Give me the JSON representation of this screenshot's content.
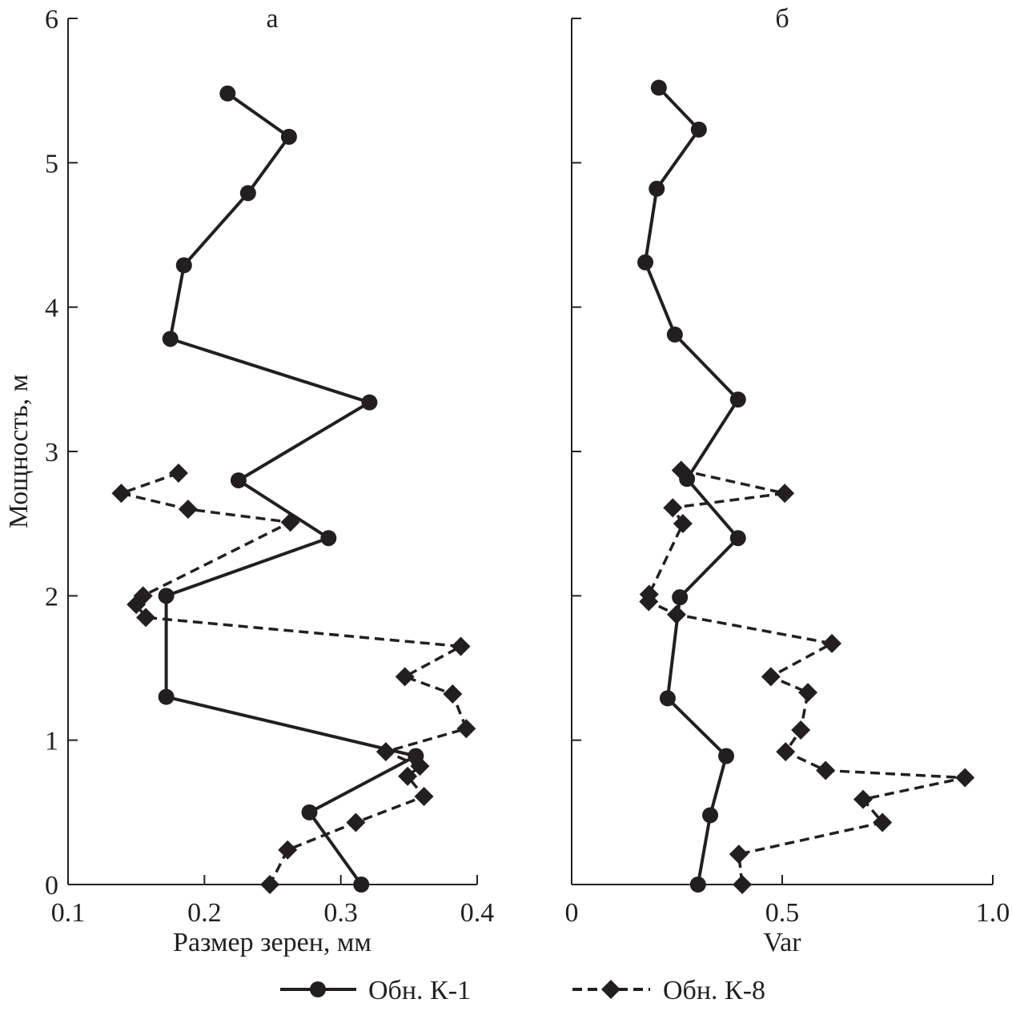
{
  "chart_data": [
    {
      "type": "line",
      "panel_label": "а",
      "xlabel": "Размер зерен, мм",
      "ylabel": "Мощность, м",
      "xlim": [
        0.1,
        0.4
      ],
      "ylim": [
        0,
        6
      ],
      "xticks": [
        "0.1",
        "0.2",
        "0.3",
        "0.4"
      ],
      "xtick_values": [
        0.1,
        0.2,
        0.3,
        0.4
      ],
      "yticks": [
        "0",
        "1",
        "2",
        "3",
        "4",
        "5",
        "6"
      ],
      "ytick_values": [
        0,
        1,
        2,
        3,
        4,
        5,
        6
      ],
      "grid": false,
      "series": [
        {
          "name": "Обн. К-1",
          "style": "solid",
          "marker": "circle",
          "points": [
            [
              0.217,
              5.48
            ],
            [
              0.262,
              5.18
            ],
            [
              0.232,
              4.79
            ],
            [
              0.185,
              4.29
            ],
            [
              0.175,
              3.78
            ],
            [
              0.321,
              3.34
            ],
            [
              0.225,
              2.8
            ],
            [
              0.291,
              2.4
            ],
            [
              0.172,
              2.0
            ],
            [
              0.172,
              1.3
            ],
            [
              0.355,
              0.89
            ],
            [
              0.277,
              0.5
            ],
            [
              0.315,
              0.0
            ]
          ]
        },
        {
          "name": "Обн. К-8",
          "style": "dashed",
          "marker": "diamond",
          "points": [
            [
              0.181,
              2.85
            ],
            [
              0.139,
              2.71
            ],
            [
              0.188,
              2.6
            ],
            [
              0.263,
              2.51
            ],
            [
              0.155,
              2.0
            ],
            [
              0.15,
              1.94
            ],
            [
              0.157,
              1.85
            ],
            [
              0.388,
              1.65
            ],
            [
              0.347,
              1.44
            ],
            [
              0.382,
              1.32
            ],
            [
              0.392,
              1.08
            ],
            [
              0.333,
              0.92
            ],
            [
              0.358,
              0.82
            ],
            [
              0.349,
              0.75
            ],
            [
              0.361,
              0.61
            ],
            [
              0.311,
              0.43
            ],
            [
              0.261,
              0.24
            ],
            [
              0.248,
              0.0
            ]
          ]
        }
      ]
    },
    {
      "type": "line",
      "panel_label": "б",
      "xlabel": "Var",
      "ylabel": "",
      "xlim": [
        0,
        1.0
      ],
      "ylim": [
        0,
        6
      ],
      "xticks": [
        "0",
        "0.5",
        "1.0"
      ],
      "xtick_values": [
        0,
        0.5,
        1.0
      ],
      "yticks": [],
      "ytick_values": [
        0,
        1,
        2,
        3,
        4,
        5,
        6
      ],
      "grid": false,
      "series": [
        {
          "name": "Обн. К-1",
          "style": "solid",
          "marker": "circle",
          "points": [
            [
              0.207,
              5.52
            ],
            [
              0.302,
              5.23
            ],
            [
              0.202,
              4.82
            ],
            [
              0.175,
              4.31
            ],
            [
              0.245,
              3.81
            ],
            [
              0.395,
              3.36
            ],
            [
              0.274,
              2.81
            ],
            [
              0.395,
              2.4
            ],
            [
              0.257,
              1.99
            ],
            [
              0.228,
              1.29
            ],
            [
              0.367,
              0.89
            ],
            [
              0.329,
              0.48
            ],
            [
              0.3,
              0.0
            ]
          ]
        },
        {
          "name": "Обн. К-8",
          "style": "dashed",
          "marker": "diamond",
          "points": [
            [
              0.26,
              2.87
            ],
            [
              0.506,
              2.71
            ],
            [
              0.24,
              2.61
            ],
            [
              0.264,
              2.5
            ],
            [
              0.184,
              2.01
            ],
            [
              0.183,
              1.96
            ],
            [
              0.249,
              1.87
            ],
            [
              0.618,
              1.67
            ],
            [
              0.473,
              1.44
            ],
            [
              0.561,
              1.33
            ],
            [
              0.544,
              1.07
            ],
            [
              0.508,
              0.92
            ],
            [
              0.603,
              0.79
            ],
            [
              0.934,
              0.74
            ],
            [
              0.692,
              0.59
            ],
            [
              0.738,
              0.43
            ],
            [
              0.397,
              0.21
            ],
            [
              0.405,
              0.0
            ]
          ]
        }
      ]
    }
  ],
  "legend": {
    "placement": "bottom-center",
    "items": [
      {
        "label": "Обн. К-1",
        "style": "solid",
        "marker": "circle"
      },
      {
        "label": "Обн. К-8",
        "style": "dashed",
        "marker": "diamond"
      }
    ]
  },
  "colors": {
    "ink": "#231f20",
    "background": "#ffffff"
  }
}
